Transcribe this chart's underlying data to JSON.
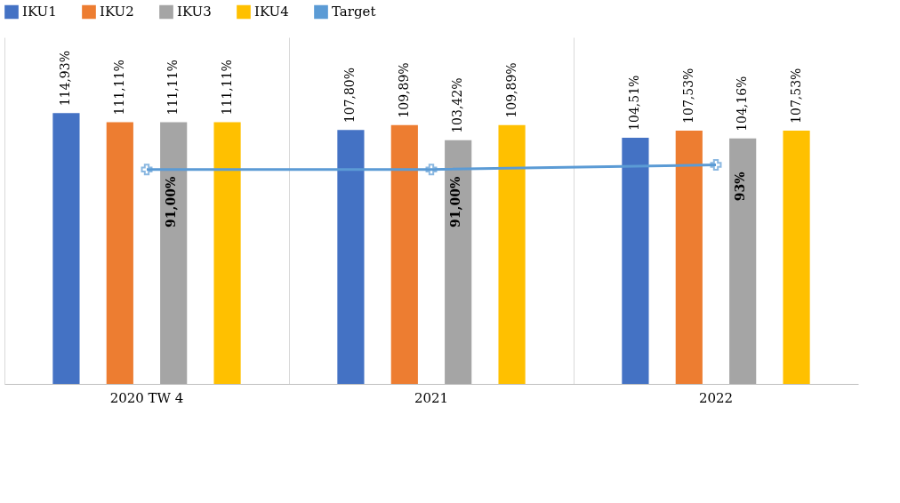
{
  "chart_data": {
    "type": "bar",
    "categories": [
      "2020 TW 4",
      "2021",
      "2022"
    ],
    "series": [
      {
        "name": "IKU1",
        "color": "#4472c4",
        "values": [
          114.93,
          107.8,
          104.51
        ],
        "value_labels": [
          "114,93%",
          "107,80%",
          "104,51%"
        ]
      },
      {
        "name": "IKU2",
        "color": "#ed7d31",
        "values": [
          111.11,
          109.89,
          107.53
        ],
        "value_labels": [
          "111,11%",
          "109,89%",
          "107,53%"
        ]
      },
      {
        "name": "IKU3",
        "color": "#a5a5a5",
        "values": [
          111.11,
          103.42,
          104.16
        ],
        "value_labels": [
          "111,11%",
          "103,42%",
          "104,16%"
        ]
      },
      {
        "name": "IKU4",
        "color": "#ffc000",
        "values": [
          111.11,
          109.89,
          107.53
        ],
        "value_labels": [
          "111,11%",
          "109,89%",
          "107,53%"
        ]
      },
      {
        "name": "Target",
        "type": "line",
        "color": "#5b9bd5",
        "marker": "cross",
        "values": [
          91.0,
          91.0,
          93
        ],
        "value_labels": [
          "91,00%",
          "91,00%",
          "93%"
        ]
      }
    ],
    "legend": "top",
    "grid": "x"
  }
}
